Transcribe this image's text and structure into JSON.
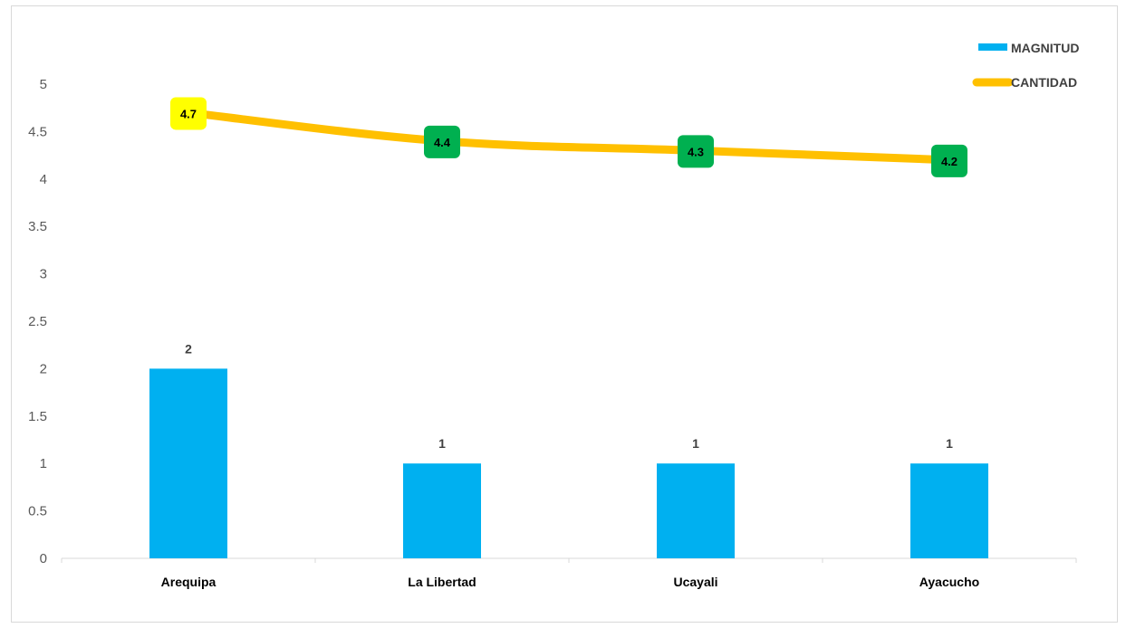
{
  "chart_data": {
    "type": "bar",
    "categories": [
      "Arequipa",
      "La Libertad",
      "Ucayali",
      "Ayacucho"
    ],
    "series": [
      {
        "name": "MAGNITUD",
        "type": "bar",
        "values": [
          2,
          1,
          1,
          1
        ],
        "color": "#00B0F0"
      },
      {
        "name": "CANTIDAD",
        "type": "line",
        "values": [
          4.7,
          4.4,
          4.3,
          4.2
        ],
        "color": "#FFC000",
        "label_colors": [
          "#FFFF00",
          "#00B050",
          "#00B050",
          "#00B050"
        ]
      }
    ],
    "ylim": [
      0,
      5
    ],
    "yticks": [
      "0",
      "0.5",
      "1",
      "1.5",
      "2",
      "2.5",
      "3",
      "3.5",
      "4",
      "4.5",
      "5"
    ],
    "title": "",
    "xlabel": "",
    "ylabel": "",
    "grid": false,
    "legend": "top-right"
  }
}
